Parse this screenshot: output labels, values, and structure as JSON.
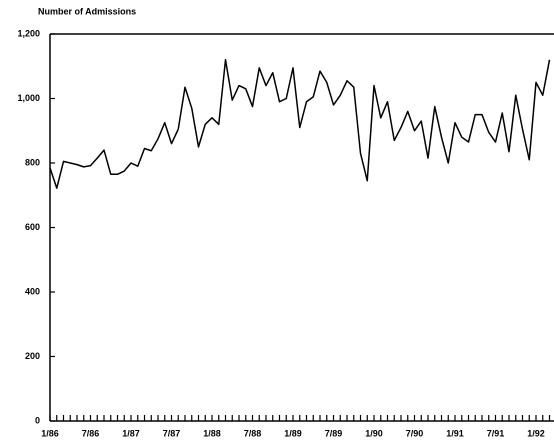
{
  "chart_data": {
    "type": "line",
    "title": "Number of Admissions",
    "categories": [
      "1/86",
      null,
      null,
      null,
      null,
      null,
      "7/86",
      null,
      null,
      null,
      null,
      null,
      "1/87",
      null,
      null,
      null,
      null,
      null,
      "7/87",
      null,
      null,
      null,
      null,
      null,
      "1/88",
      null,
      null,
      null,
      null,
      null,
      "7/88",
      null,
      null,
      null,
      null,
      null,
      "1/89",
      null,
      null,
      null,
      null,
      null,
      "7/89",
      null,
      null,
      null,
      null,
      null,
      "1/90",
      null,
      null,
      null,
      null,
      null,
      "7/90",
      null,
      null,
      null,
      null,
      null,
      "1/91",
      null,
      null,
      null,
      null,
      null,
      "7/91",
      null,
      null,
      null,
      null,
      null,
      "1/92",
      null,
      null
    ],
    "values": [
      785,
      722,
      805,
      800,
      795,
      788,
      792,
      815,
      840,
      765,
      765,
      775,
      800,
      790,
      845,
      838,
      875,
      925,
      860,
      905,
      1035,
      970,
      850,
      920,
      940,
      920,
      1120,
      995,
      1040,
      1030,
      975,
      1095,
      1040,
      1080,
      990,
      1000,
      1095,
      910,
      990,
      1005,
      1085,
      1050,
      980,
      1010,
      1055,
      1035,
      830,
      745,
      1040,
      940,
      990,
      870,
      910,
      960,
      900,
      930,
      815,
      975,
      880,
      800,
      925,
      880,
      865,
      950,
      950,
      895,
      865,
      955,
      835,
      1010,
      905,
      810,
      1050,
      1010,
      1120
    ],
    "color": "#000000",
    "ylim": [
      0,
      1200
    ],
    "yticks": [
      0,
      200,
      400,
      600,
      800,
      {
        "value": 1000,
        "label": "1,000"
      },
      {
        "value": 1200,
        "label": "1,200"
      }
    ]
  }
}
